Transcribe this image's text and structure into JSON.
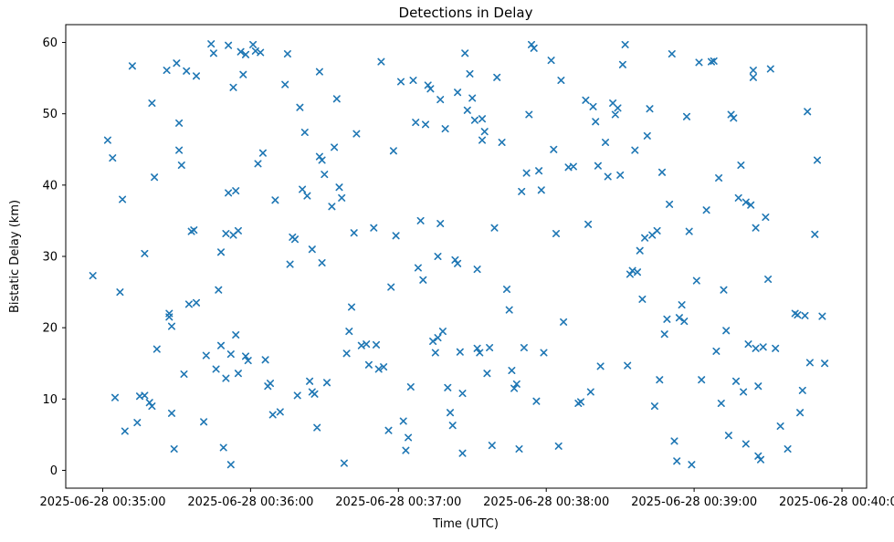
{
  "chart_data": {
    "type": "scatter",
    "title": "Detections in Delay",
    "xlabel": "Time (UTC)",
    "ylabel": "Bistatic Delay (km)",
    "marker": "x",
    "marker_color": "#1f77b4",
    "grid": false,
    "legend": "none",
    "x_axis_unit": "seconds after 2025-06-28 00:35:00 UTC",
    "xlim_seconds": [
      -15,
      310
    ],
    "ylim": [
      -2.5,
      62.5
    ],
    "x_ticks": [
      {
        "t": 0,
        "label": "2025-06-28 00:35:00"
      },
      {
        "t": 60,
        "label": "2025-06-28 00:36:00"
      },
      {
        "t": 120,
        "label": "2025-06-28 00:37:00"
      },
      {
        "t": 180,
        "label": "2025-06-28 00:38:00"
      },
      {
        "t": 240,
        "label": "2025-06-28 00:39:00"
      },
      {
        "t": 300,
        "label": "2025-06-28 00:40:00"
      }
    ],
    "y_ticks": [
      0,
      10,
      20,
      30,
      40,
      50,
      60
    ],
    "points": [
      [
        -4,
        27.3
      ],
      [
        2,
        46.3
      ],
      [
        4,
        43.8
      ],
      [
        5,
        10.2
      ],
      [
        7,
        25.0
      ],
      [
        8,
        38.0
      ],
      [
        9,
        5.5
      ],
      [
        12,
        56.7
      ],
      [
        14,
        6.7
      ],
      [
        15,
        10.4
      ],
      [
        17,
        10.5
      ],
      [
        17,
        30.4
      ],
      [
        19,
        9.5
      ],
      [
        20,
        9.0
      ],
      [
        20,
        51.5
      ],
      [
        21,
        41.1
      ],
      [
        22,
        17.0
      ],
      [
        26,
        56.1
      ],
      [
        27,
        21.5
      ],
      [
        27,
        22.0
      ],
      [
        28,
        20.2
      ],
      [
        28,
        8.0
      ],
      [
        29,
        3.0
      ],
      [
        30,
        57.1
      ],
      [
        31,
        48.7
      ],
      [
        31,
        44.9
      ],
      [
        32,
        42.8
      ],
      [
        33,
        13.5
      ],
      [
        34,
        56.0
      ],
      [
        35,
        23.3
      ],
      [
        36,
        33.5
      ],
      [
        37,
        33.7
      ],
      [
        38,
        55.3
      ],
      [
        38,
        23.5
      ],
      [
        41,
        6.8
      ],
      [
        42,
        16.1
      ],
      [
        44,
        59.8
      ],
      [
        45,
        58.5
      ],
      [
        46,
        14.2
      ],
      [
        47,
        25.3
      ],
      [
        48,
        30.6
      ],
      [
        48,
        17.5
      ],
      [
        49,
        3.2
      ],
      [
        50,
        33.2
      ],
      [
        50,
        12.9
      ],
      [
        51,
        59.6
      ],
      [
        51,
        38.9
      ],
      [
        52,
        16.3
      ],
      [
        52,
        0.8
      ],
      [
        53,
        53.7
      ],
      [
        53,
        33.0
      ],
      [
        54,
        39.2
      ],
      [
        54,
        19.0
      ],
      [
        55,
        33.6
      ],
      [
        55,
        13.6
      ],
      [
        56,
        58.7
      ],
      [
        57,
        55.5
      ],
      [
        58,
        58.3
      ],
      [
        58,
        16.0
      ],
      [
        59,
        15.4
      ],
      [
        61,
        59.7
      ],
      [
        62,
        58.8
      ],
      [
        63,
        43.0
      ],
      [
        64,
        58.6
      ],
      [
        65,
        44.5
      ],
      [
        66,
        15.5
      ],
      [
        67,
        11.8
      ],
      [
        68,
        12.2
      ],
      [
        69,
        7.8
      ],
      [
        70,
        37.9
      ],
      [
        72,
        8.2
      ],
      [
        74,
        54.1
      ],
      [
        75,
        58.4
      ],
      [
        76,
        28.9
      ],
      [
        77,
        32.7
      ],
      [
        78,
        32.4
      ],
      [
        79,
        10.5
      ],
      [
        80,
        50.9
      ],
      [
        81,
        39.4
      ],
      [
        82,
        47.4
      ],
      [
        83,
        38.5
      ],
      [
        84,
        12.5
      ],
      [
        85,
        11.0
      ],
      [
        85,
        31.0
      ],
      [
        86,
        10.7
      ],
      [
        87,
        6.0
      ],
      [
        88,
        55.9
      ],
      [
        88,
        44.0
      ],
      [
        89,
        43.5
      ],
      [
        89,
        29.1
      ],
      [
        90,
        41.5
      ],
      [
        91,
        12.3
      ],
      [
        93,
        37.0
      ],
      [
        94,
        45.3
      ],
      [
        95,
        52.1
      ],
      [
        96,
        39.7
      ],
      [
        97,
        38.2
      ],
      [
        98,
        1.0
      ],
      [
        99,
        16.4
      ],
      [
        100,
        19.5
      ],
      [
        101,
        22.9
      ],
      [
        102,
        33.3
      ],
      [
        103,
        47.2
      ],
      [
        105,
        17.5
      ],
      [
        107,
        17.7
      ],
      [
        108,
        14.8
      ],
      [
        110,
        34.0
      ],
      [
        111,
        17.6
      ],
      [
        112,
        14.2
      ],
      [
        113,
        57.3
      ],
      [
        114,
        14.5
      ],
      [
        116,
        5.6
      ],
      [
        117,
        25.7
      ],
      [
        118,
        44.8
      ],
      [
        119,
        32.9
      ],
      [
        121,
        54.5
      ],
      [
        122,
        6.9
      ],
      [
        123,
        2.8
      ],
      [
        124,
        4.6
      ],
      [
        125,
        11.7
      ],
      [
        126,
        54.7
      ],
      [
        127,
        48.8
      ],
      [
        128,
        28.4
      ],
      [
        129,
        35.0
      ],
      [
        130,
        26.7
      ],
      [
        131,
        48.5
      ],
      [
        132,
        54.0
      ],
      [
        133,
        53.5
      ],
      [
        134,
        18.1
      ],
      [
        135,
        16.5
      ],
      [
        136,
        30.0
      ],
      [
        136,
        18.6
      ],
      [
        137,
        52.0
      ],
      [
        137,
        34.6
      ],
      [
        138,
        19.5
      ],
      [
        139,
        47.9
      ],
      [
        140,
        11.6
      ],
      [
        141,
        8.1
      ],
      [
        142,
        6.3
      ],
      [
        143,
        29.5
      ],
      [
        144,
        53.0
      ],
      [
        144,
        29.0
      ],
      [
        145,
        16.6
      ],
      [
        146,
        2.4
      ],
      [
        146,
        10.8
      ],
      [
        147,
        58.5
      ],
      [
        148,
        50.5
      ],
      [
        149,
        55.6
      ],
      [
        150,
        52.2
      ],
      [
        151,
        49.1
      ],
      [
        152,
        28.2
      ],
      [
        152,
        17.1
      ],
      [
        153,
        16.5
      ],
      [
        154,
        49.3
      ],
      [
        154,
        46.3
      ],
      [
        155,
        47.5
      ],
      [
        156,
        13.6
      ],
      [
        157,
        17.2
      ],
      [
        158,
        3.5
      ],
      [
        159,
        34.0
      ],
      [
        160,
        55.1
      ],
      [
        162,
        46.0
      ],
      [
        164,
        25.4
      ],
      [
        165,
        22.5
      ],
      [
        166,
        14.0
      ],
      [
        167,
        11.5
      ],
      [
        168,
        12.1
      ],
      [
        169,
        3.0
      ],
      [
        170,
        39.1
      ],
      [
        171,
        17.2
      ],
      [
        172,
        41.7
      ],
      [
        173,
        49.9
      ],
      [
        174,
        59.7
      ],
      [
        175,
        59.2
      ],
      [
        176,
        9.7
      ],
      [
        177,
        42.0
      ],
      [
        178,
        39.3
      ],
      [
        179,
        16.5
      ],
      [
        182,
        57.5
      ],
      [
        183,
        45.0
      ],
      [
        184,
        33.2
      ],
      [
        185,
        3.4
      ],
      [
        186,
        54.7
      ],
      [
        187,
        20.8
      ],
      [
        189,
        42.5
      ],
      [
        191,
        42.6
      ],
      [
        193,
        9.4
      ],
      [
        194,
        9.6
      ],
      [
        196,
        51.9
      ],
      [
        197,
        34.5
      ],
      [
        198,
        11.0
      ],
      [
        199,
        51.0
      ],
      [
        200,
        48.9
      ],
      [
        201,
        42.7
      ],
      [
        202,
        14.6
      ],
      [
        204,
        46.0
      ],
      [
        205,
        41.2
      ],
      [
        207,
        51.5
      ],
      [
        208,
        49.9
      ],
      [
        209,
        50.8
      ],
      [
        210,
        41.4
      ],
      [
        211,
        56.9
      ],
      [
        212,
        59.7
      ],
      [
        213,
        14.7
      ],
      [
        214,
        27.5
      ],
      [
        215,
        28.0
      ],
      [
        216,
        44.9
      ],
      [
        217,
        27.8
      ],
      [
        218,
        30.8
      ],
      [
        219,
        24.0
      ],
      [
        220,
        32.6
      ],
      [
        221,
        46.9
      ],
      [
        222,
        50.7
      ],
      [
        223,
        33.0
      ],
      [
        224,
        9.0
      ],
      [
        225,
        33.6
      ],
      [
        226,
        12.7
      ],
      [
        227,
        41.8
      ],
      [
        228,
        19.1
      ],
      [
        229,
        21.2
      ],
      [
        230,
        37.3
      ],
      [
        231,
        58.4
      ],
      [
        232,
        4.1
      ],
      [
        233,
        1.3
      ],
      [
        234,
        21.4
      ],
      [
        235,
        23.2
      ],
      [
        236,
        20.9
      ],
      [
        237,
        49.6
      ],
      [
        238,
        33.5
      ],
      [
        239,
        0.8
      ],
      [
        241,
        26.6
      ],
      [
        242,
        57.2
      ],
      [
        243,
        12.7
      ],
      [
        245,
        36.5
      ],
      [
        247,
        57.3
      ],
      [
        248,
        57.4
      ],
      [
        249,
        16.7
      ],
      [
        250,
        41.0
      ],
      [
        251,
        9.4
      ],
      [
        252,
        25.3
      ],
      [
        253,
        19.6
      ],
      [
        254,
        4.9
      ],
      [
        255,
        49.9
      ],
      [
        256,
        49.4
      ],
      [
        257,
        12.5
      ],
      [
        258,
        38.2
      ],
      [
        259,
        42.8
      ],
      [
        260,
        11.0
      ],
      [
        261,
        3.7
      ],
      [
        261,
        37.6
      ],
      [
        262,
        17.7
      ],
      [
        263,
        37.2
      ],
      [
        264,
        56.1
      ],
      [
        264,
        55.1
      ],
      [
        265,
        34.0
      ],
      [
        265,
        17.1
      ],
      [
        266,
        11.8
      ],
      [
        266,
        2.0
      ],
      [
        267,
        1.5
      ],
      [
        268,
        17.3
      ],
      [
        269,
        35.5
      ],
      [
        270,
        26.8
      ],
      [
        271,
        56.3
      ],
      [
        273,
        17.1
      ],
      [
        275,
        6.2
      ],
      [
        278,
        3.0
      ],
      [
        281,
        22.0
      ],
      [
        282,
        21.8
      ],
      [
        283,
        8.1
      ],
      [
        284,
        11.2
      ],
      [
        285,
        21.7
      ],
      [
        286,
        50.3
      ],
      [
        287,
        15.1
      ],
      [
        289,
        33.1
      ],
      [
        290,
        43.5
      ],
      [
        292,
        21.6
      ],
      [
        293,
        15.0
      ]
    ]
  }
}
